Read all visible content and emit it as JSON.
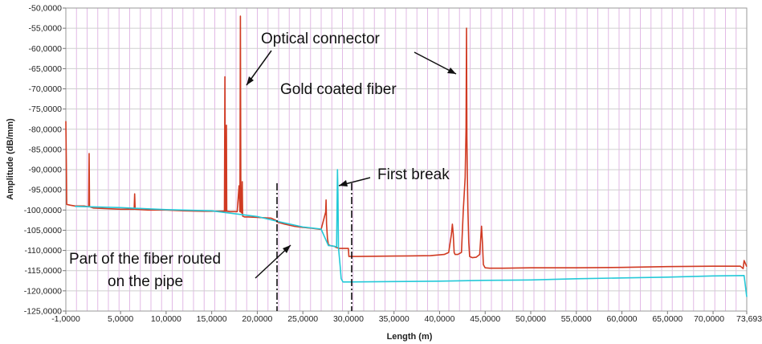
{
  "chart_data": {
    "type": "line",
    "title": "",
    "xlabel": "Length (m)",
    "ylabel": "Amplitude (dB/mm)",
    "xlim": [
      -1,
      73.6934
    ],
    "ylim": [
      -122,
      -50
    ],
    "grid": true,
    "x_ticks": [
      "-1,0000",
      "5,0000",
      "10,0000",
      "15,0000",
      "20,0000",
      "25,0000",
      "30,0000",
      "35,0000",
      "40,0000",
      "45,0000",
      "50,0000",
      "55,0000",
      "60,0000",
      "65,0000",
      "70,0000",
      "73,6934"
    ],
    "y_ticks": [
      "-50,0000",
      "-55,0000",
      "-60,0000",
      "-65,0000",
      "-70,0000",
      "-75,0000",
      "-80,0000",
      "-85,0000",
      "-90,0000",
      "-95,0000",
      "-100,0000",
      "-105,0000",
      "-110,0000",
      "-115,0000",
      "-120,0000",
      "-125,0000"
    ],
    "series": [
      {
        "color": "#d03a22",
        "x": [
          -1.0,
          -0.95,
          -0.9,
          -0.5,
          0.0,
          1.0,
          1.5,
          1.55,
          1.6,
          2.0,
          3.0,
          5.0,
          6.5,
          6.55,
          6.6,
          8.0,
          10.0,
          12.0,
          14.0,
          16.0,
          16.4,
          16.45,
          16.5,
          16.6,
          16.62,
          16.65,
          17.0,
          17.8,
          18.0,
          18.1,
          18.15,
          18.2,
          18.3,
          18.35,
          18.4,
          18.6,
          18.8,
          19.0,
          20.0,
          21.5,
          22.0,
          22.2,
          23.0,
          24.0,
          25.0,
          26.0,
          27.0,
          27.5,
          27.55,
          27.6,
          27.7,
          27.8,
          28.0,
          28.5,
          28.6,
          29.0,
          30.0,
          30.05,
          31.0,
          35.0,
          39.0,
          40.5,
          41.0,
          41.3,
          41.4,
          41.5,
          41.6,
          41.7,
          42.0,
          42.4,
          42.6,
          42.8,
          42.9,
          42.95,
          43.0,
          43.05,
          43.1,
          43.2,
          43.3,
          43.6,
          44.0,
          44.4,
          44.6,
          44.7,
          44.8,
          45.0,
          45.5,
          47.0,
          50.0,
          55.0,
          60.0,
          65.0,
          70.0,
          73.0,
          73.3,
          73.4,
          73.6934
        ],
        "y": [
          -78.0,
          -88.0,
          -98.6,
          -98.8,
          -99.0,
          -99.0,
          -99.2,
          -86.0,
          -99.2,
          -99.5,
          -99.6,
          -99.8,
          -99.8,
          -96.0,
          -99.8,
          -100.0,
          -100.0,
          -100.2,
          -100.3,
          -100.3,
          -100.3,
          -67.0,
          -100.3,
          -100.3,
          -79.0,
          -100.3,
          -100.4,
          -100.4,
          -94.0,
          -100.4,
          -52.0,
          -100.5,
          -100.7,
          -93.0,
          -101.5,
          -101.7,
          -101.7,
          -101.7,
          -101.8,
          -102.0,
          -102.5,
          -103.0,
          -103.5,
          -104.0,
          -104.3,
          -104.5,
          -104.8,
          -100.5,
          -97.5,
          -103.5,
          -107.0,
          -108.5,
          -108.8,
          -109.0,
          -109.2,
          -109.5,
          -109.5,
          -111.5,
          -111.5,
          -111.4,
          -111.3,
          -111.0,
          -110.5,
          -106.0,
          -103.5,
          -106.0,
          -110.5,
          -111.0,
          -111.0,
          -110.5,
          -100.0,
          -92.0,
          -80.0,
          -55.0,
          -82.0,
          -92.0,
          -99.5,
          -108.0,
          -111.5,
          -111.8,
          -111.7,
          -111.0,
          -104.0,
          -108.0,
          -113.5,
          -114.3,
          -114.4,
          -114.4,
          -114.3,
          -114.3,
          -114.2,
          -114.0,
          -113.9,
          -113.9,
          -114.5,
          -112.5,
          -114.0
        ]
      },
      {
        "color": "#25c9d8",
        "x": [
          0.0,
          5.0,
          10.0,
          15.0,
          20.0,
          22.2,
          25.0,
          27.0,
          27.8,
          28.0,
          28.5,
          28.7,
          28.8,
          28.85,
          28.9,
          29.1,
          29.2,
          29.4,
          30.0,
          35.0,
          40.0,
          45.0,
          50.0,
          55.0,
          60.0,
          65.0,
          70.0,
          73.4,
          73.6934
        ],
        "y": [
          -99.1,
          -99.4,
          -99.9,
          -100.2,
          -101.6,
          -102.8,
          -104.2,
          -104.7,
          -108.8,
          -108.8,
          -109.0,
          -109.1,
          -90.0,
          -96.0,
          -109.2,
          -114.0,
          -117.0,
          -117.8,
          -117.8,
          -117.7,
          -117.6,
          -117.4,
          -117.3,
          -117.0,
          -116.8,
          -116.6,
          -116.3,
          -116.2,
          -121.5
        ]
      }
    ],
    "annotations": [
      {
        "text": "Optical connector"
      },
      {
        "text": "Gold coated fiber"
      },
      {
        "text": "First break"
      },
      {
        "text": "Part of the fiber routed"
      },
      {
        "text": "on the pipe"
      }
    ]
  }
}
